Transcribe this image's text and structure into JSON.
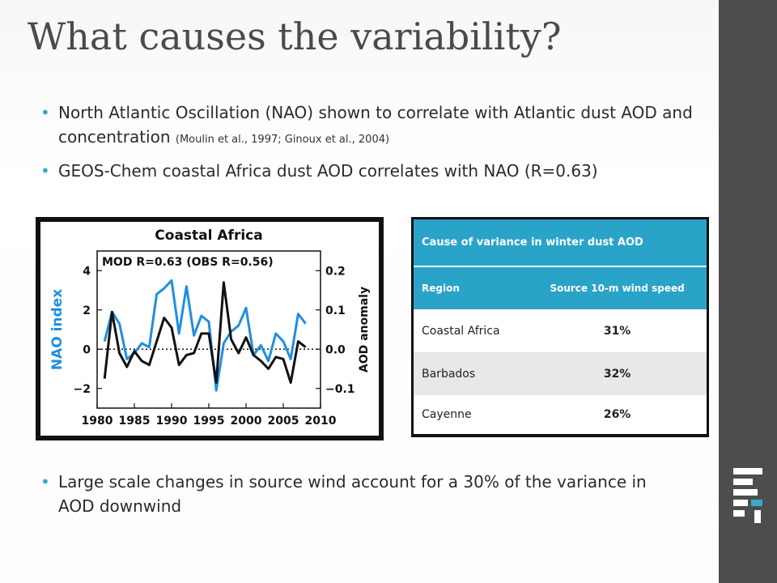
{
  "slide": {
    "title": "What causes the variability?",
    "bullets": [
      {
        "text": "North Atlantic Oscillation (NAO) shown to correlate with Atlantic dust AOD and concentration",
        "citation": "(Moulin et al., 1997; Ginoux et al., 2004)"
      },
      {
        "text": "GEOS-Chem coastal Africa dust AOD correlates with NAO (R=0.63)",
        "citation": ""
      }
    ],
    "bottom_bullet": "Large scale changes in source wind account for a 30% of the variance in AOD downwind",
    "colors": {
      "sidebar": "#4d4d4d",
      "accent": "#2aa3c8",
      "bullet": "#3aa8c9"
    },
    "logo_icon": "stacked-bars-logo-icon"
  },
  "chart_data": {
    "type": "line",
    "title": "Coastal Africa",
    "annotation": "MOD  R=0.63  (OBS R=0.56)",
    "xlabel": "",
    "ylabel_left": "NAO index",
    "ylabel_right": "AOD anomaly",
    "xlim": [
      1980,
      2010
    ],
    "ylim_left": [
      -3,
      5
    ],
    "ylim_right": [
      -0.15,
      0.25
    ],
    "xticks": [
      "1980",
      "1985",
      "1990",
      "1995",
      "2000",
      "2005",
      "2010"
    ],
    "xtick_values": [
      1980,
      1985,
      1990,
      1995,
      2000,
      2005,
      2010
    ],
    "yticks_left": [
      "4",
      "2",
      "0",
      "−2"
    ],
    "yticks_left_values": [
      4,
      2,
      0,
      -2
    ],
    "yticks_right": [
      "0.2",
      "0.1",
      "0.0",
      "−0.1"
    ],
    "yticks_right_values": [
      0.2,
      0.1,
      0.0,
      -0.1
    ],
    "zero_line": "dotted",
    "series": [
      {
        "name": "NAO index",
        "color": "#1f8fe0",
        "axis": "left",
        "x": [
          1981,
          1982,
          1983,
          1984,
          1985,
          1986,
          1987,
          1988,
          1989,
          1990,
          1991,
          1992,
          1993,
          1994,
          1995,
          1996,
          1997,
          1998,
          1999,
          2000,
          2001,
          2002,
          2003,
          2004,
          2005,
          2006,
          2007,
          2008
        ],
        "values": [
          0.4,
          1.9,
          1.3,
          -0.5,
          -0.2,
          0.3,
          0.1,
          2.8,
          3.1,
          3.5,
          0.8,
          3.2,
          0.7,
          1.7,
          1.4,
          -2.1,
          0.3,
          0.9,
          1.2,
          2.1,
          -0.3,
          0.2,
          -0.6,
          0.8,
          0.4,
          -0.5,
          1.8,
          1.3
        ]
      },
      {
        "name": "AOD anomaly",
        "color": "#111111",
        "axis": "right",
        "x": [
          1981,
          1982,
          1983,
          1984,
          1985,
          1986,
          1987,
          1988,
          1989,
          1990,
          1991,
          1992,
          1993,
          1994,
          1995,
          1996,
          1997,
          1998,
          1999,
          2000,
          2001,
          2002,
          2003,
          2004,
          2005,
          2006,
          2007,
          2008
        ],
        "values": [
          -0.075,
          0.095,
          -0.01,
          -0.045,
          -0.005,
          -0.03,
          -0.04,
          0.02,
          0.08,
          0.055,
          -0.04,
          -0.015,
          -0.01,
          0.04,
          0.04,
          -0.085,
          0.17,
          0.025,
          -0.01,
          0.03,
          -0.015,
          -0.03,
          -0.05,
          -0.02,
          -0.025,
          -0.085,
          0.02,
          0.005
        ]
      }
    ]
  },
  "table": {
    "caption": "Cause of variance in winter dust AOD",
    "headers": [
      "Region",
      "Source 10-m wind speed"
    ],
    "rows": [
      [
        "Coastal Africa",
        "31%"
      ],
      [
        "Barbados",
        "32%"
      ],
      [
        "Cayenne",
        "26%"
      ]
    ]
  }
}
